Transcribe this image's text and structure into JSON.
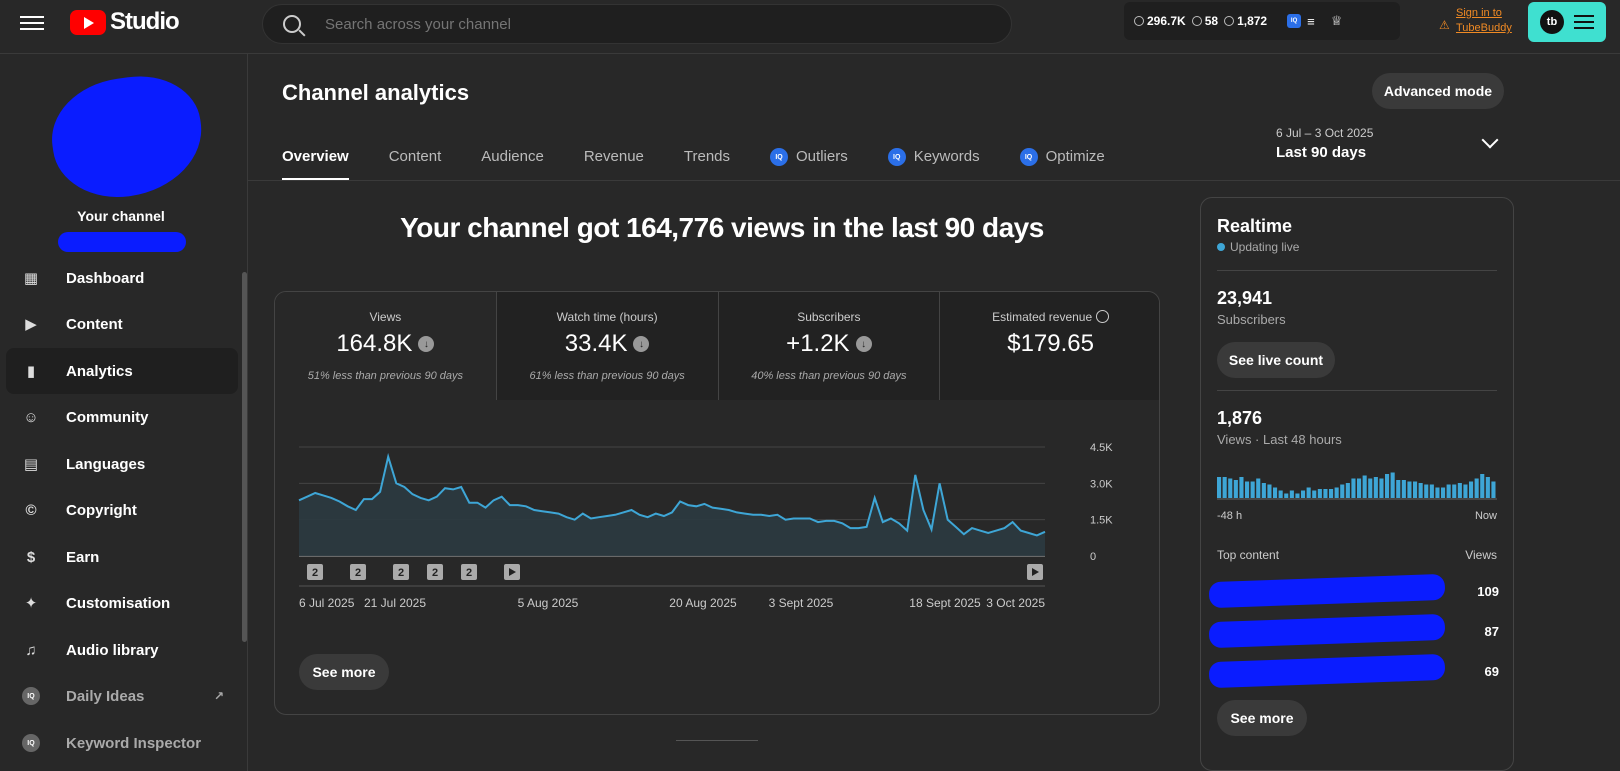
{
  "header": {
    "logo_text": "Studio",
    "search_placeholder": "Search across your channel",
    "tb_stats": [
      "296.7K",
      "58",
      "1,872"
    ],
    "tb_sign_in_line1": "Sign in to",
    "tb_sign_in_line2": "TubeBuddy",
    "tb_logo_text": "tb",
    "iq_text": "IQ"
  },
  "sidebar": {
    "channel_label": "Your channel",
    "items": [
      {
        "label": "Dashboard",
        "icon": "dashboard-icon",
        "glyph": "▦"
      },
      {
        "label": "Content",
        "icon": "content-icon",
        "glyph": "▶"
      },
      {
        "label": "Analytics",
        "icon": "analytics-icon",
        "glyph": "▮"
      },
      {
        "label": "Community",
        "icon": "community-icon",
        "glyph": "☺"
      },
      {
        "label": "Languages",
        "icon": "languages-icon",
        "glyph": "▤"
      },
      {
        "label": "Copyright",
        "icon": "copyright-icon",
        "glyph": "©"
      },
      {
        "label": "Earn",
        "icon": "earn-icon",
        "glyph": "$"
      },
      {
        "label": "Customisation",
        "icon": "customisation-icon",
        "glyph": "✦"
      },
      {
        "label": "Audio library",
        "icon": "audio-library-icon",
        "glyph": "♫"
      },
      {
        "label": "Daily Ideas",
        "icon": "daily-ideas-icon",
        "glyph": "IQ"
      },
      {
        "label": "Keyword Inspector",
        "icon": "keyword-inspector-icon",
        "glyph": "IQ"
      }
    ]
  },
  "main": {
    "title": "Channel analytics",
    "advanced_mode": "Advanced mode",
    "tabs": [
      "Overview",
      "Content",
      "Audience",
      "Revenue",
      "Trends",
      "Outliers",
      "Keywords",
      "Optimize"
    ],
    "date_range": "6 Jul – 3 Oct 2025",
    "date_label": "Last 90 days",
    "headline": "Your channel got 164,776 views in the last 90 days",
    "metrics": [
      {
        "label": "Views",
        "value": "164.8K",
        "sub": "51% less than previous 90 days"
      },
      {
        "label": "Watch time (hours)",
        "value": "33.4K",
        "sub": "61% less than previous 90 days"
      },
      {
        "label": "Subscribers",
        "value": "+1.2K",
        "sub": "40% less than previous 90 days"
      },
      {
        "label": "Estimated revenue",
        "value": "$179.65",
        "sub": ""
      }
    ],
    "see_more": "See more"
  },
  "chart_data": {
    "type": "area",
    "title": "",
    "xlabel": "",
    "ylabel": "",
    "ylim": [
      0,
      4500
    ],
    "y_ticks": [
      "4.5K",
      "3.0K",
      "1.5K",
      "0"
    ],
    "x_ticks": [
      "6 Jul 2025",
      "21 Jul 2025",
      "5 Aug 2025",
      "20 Aug 2025",
      "3 Sept 2025",
      "18 Sept 2025",
      "3 Oct 2025"
    ],
    "grid": true,
    "color": "#3ea6d6",
    "markers": [
      "2",
      "2",
      "2",
      "2",
      "2",
      "play",
      "play"
    ],
    "values": [
      2300,
      2450,
      2600,
      2500,
      2400,
      2250,
      2050,
      1900,
      2350,
      2350,
      2650,
      4100,
      3000,
      2850,
      2550,
      2400,
      2300,
      2450,
      2800,
      2750,
      2850,
      2200,
      2200,
      2000,
      2300,
      2450,
      2100,
      2100,
      2050,
      1900,
      1850,
      1800,
      1750,
      1600,
      1500,
      1750,
      1550,
      1600,
      1650,
      1700,
      1800,
      1900,
      1700,
      1600,
      1750,
      1650,
      1800,
      2250,
      2100,
      2050,
      2150,
      2000,
      1950,
      1900,
      1800,
      1750,
      1700,
      1700,
      1650,
      1700,
      1500,
      1550,
      1550,
      1550,
      1400,
      1450,
      1450,
      1350,
      1150,
      1150,
      1200,
      2400,
      1400,
      1550,
      1350,
      1050,
      3350,
      1900,
      1100,
      3000,
      1500,
      1200,
      900,
      1150,
      1050,
      950,
      1050,
      1150,
      1400,
      1050,
      950,
      850,
      1000
    ]
  },
  "realtime": {
    "title": "Realtime",
    "live": "Updating live",
    "subs_value": "23,941",
    "subs_label": "Subscribers",
    "live_count_btn": "See live count",
    "views_value": "1,876",
    "views_label": "Views · Last 48 hours",
    "axis_start": "-48 h",
    "axis_end": "Now",
    "bars": [
      0.7,
      0.7,
      0.65,
      0.6,
      0.7,
      0.55,
      0.55,
      0.65,
      0.5,
      0.45,
      0.35,
      0.25,
      0.15,
      0.25,
      0.15,
      0.25,
      0.35,
      0.25,
      0.3,
      0.3,
      0.3,
      0.35,
      0.45,
      0.5,
      0.65,
      0.65,
      0.75,
      0.65,
      0.7,
      0.65,
      0.8,
      0.85,
      0.6,
      0.6,
      0.55,
      0.55,
      0.5,
      0.45,
      0.45,
      0.35,
      0.35,
      0.45,
      0.45,
      0.5,
      0.45,
      0.55,
      0.65,
      0.8,
      0.7,
      0.55
    ],
    "top_content_label": "Top content",
    "views_col_label": "Views",
    "top_content_views": [
      "109",
      "87",
      "69"
    ],
    "see_more": "See more"
  }
}
